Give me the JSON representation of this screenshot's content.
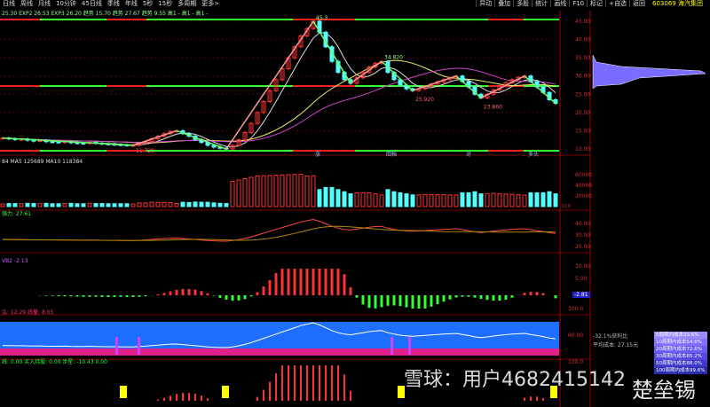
{
  "toolbar": {
    "tabs": [
      "日线",
      "周线",
      "月线",
      "10分钟",
      "45日线",
      "季线",
      "年线",
      "5秒",
      "15秒",
      "多周期",
      "更多>"
    ],
    "right": [
      "异动",
      "叠加",
      "多股",
      "统计",
      "画线",
      "F10",
      "标记",
      "+自选",
      "返回"
    ],
    "stock": "603069 海汽集团"
  },
  "info_line": "25.30 EXP2 26.53 EXP3 26.20 趋势 15.70 趋势 27.67 趋势 9.55 高1 - 高1 - 高1 -",
  "price_axis": [
    "45.00",
    "40.00",
    "35.00",
    "30.00",
    "25.00",
    "20.00",
    "15.00",
    "10.00"
  ],
  "pivot_labels": [
    "45.3",
    "34.820",
    "25.920",
    "23.860",
    "11.720"
  ],
  "bottom_marks": [
    "涨",
    "回档",
    "对",
    "多头"
  ],
  "closes": [
    13,
    12.8,
    12.6,
    12.7,
    12.4,
    12.2,
    12.3,
    12.0,
    11.9,
    11.8,
    12.0,
    11.7,
    11.6,
    11.5,
    11.8,
    11.6,
    11.4,
    11.3,
    11.2,
    11.1,
    11.0,
    11.0,
    11.5,
    12,
    12.8,
    13.5,
    14.2,
    14.8,
    15.0,
    14.2,
    13.5,
    12.6,
    11.8,
    11.0,
    10.5,
    10.2,
    10.0,
    11,
    12.5,
    14.5,
    17,
    20,
    23,
    26,
    29,
    32,
    35,
    38,
    41,
    43,
    45,
    42,
    38,
    34,
    31,
    29,
    28,
    29.5,
    31,
    32.5,
    33.5,
    34,
    31,
    29,
    27.5,
    26.5,
    26,
    26.5,
    27.2,
    27.8,
    28.4,
    29,
    29.5,
    30,
    28.5,
    27,
    25,
    24,
    25,
    26.2,
    27.3,
    28.2,
    29,
    29.6,
    30,
    28.5,
    27,
    25.5,
    23.5,
    22.5
  ],
  "volume": {
    "label": "84 MA5 125689 MA10 118384",
    "axis": [
      "60000",
      "40000",
      "20000"
    ],
    "unit": "X10"
  },
  "panel2": {
    "label": "强力: 27.61",
    "axis": [
      "40.00",
      "30.00",
      "20.00"
    ]
  },
  "panel3": {
    "label": "VB2 -2.13",
    "axis": [
      "10.00",
      "5.00"
    ],
    "value": "-2.81"
  },
  "panel4": {
    "label": "弘: 12.29 线量: 8.05",
    "axis": [
      "100.0",
      "60.00",
      "100.0"
    ]
  },
  "panel5": {
    "label": "线: 0.00  买入持股: 0.00  步星: -10.43  0.00"
  },
  "chip_legend": [
    "5周期内成本33.6%",
    "10周期内成本54.6%",
    "20周期内成本72.6%",
    "30周期内成本85.2%",
    "50周期内成本88.0%",
    "100周期内成本99.6%"
  ],
  "chip_info": [
    "-32.1%获利比",
    "平均成本: 27.15元"
  ],
  "watermark": "雪球：用户4682415142",
  "watermark2": "楚垒锡",
  "colors": {
    "up": "#ff3333",
    "down": "#54ffff",
    "blue_panel": "#1e6fff",
    "grid": "#8b0000"
  }
}
